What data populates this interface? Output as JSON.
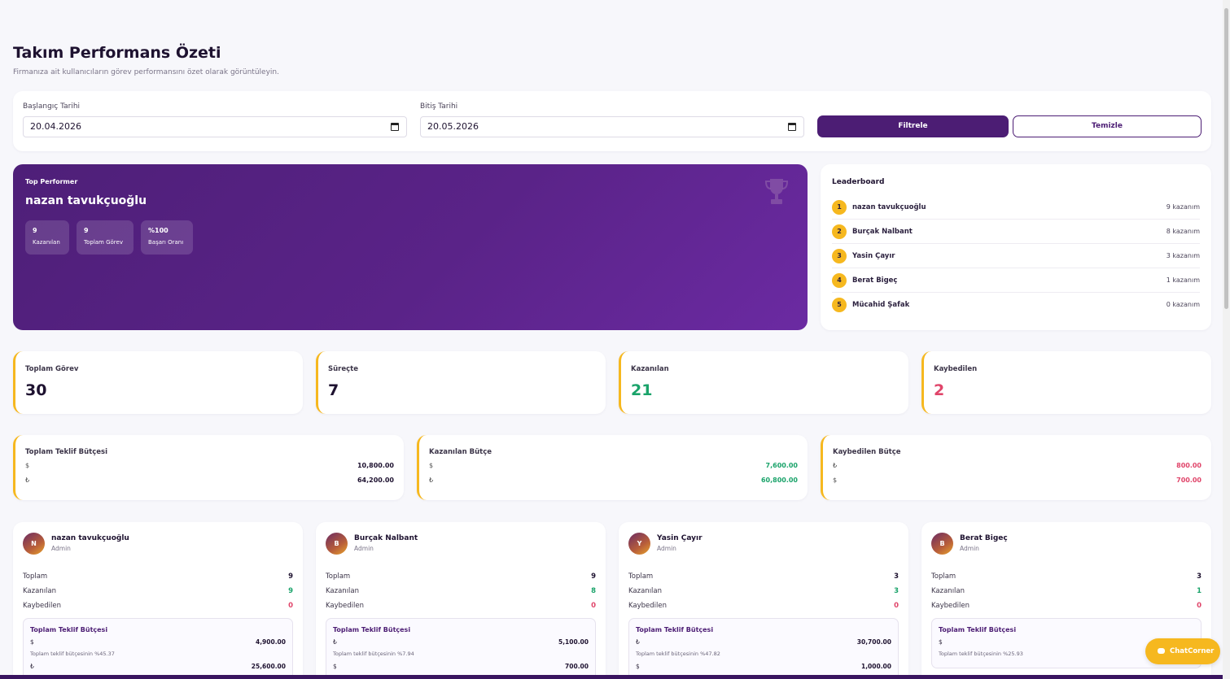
{
  "header": {
    "title": "Takım Performans Özeti",
    "subtitle": "Firmanıza ait kullanıcıların görev performansını özet olarak görüntüleyin."
  },
  "filter": {
    "start_label": "Başlangıç Tarihi",
    "start_value": "20.04.2026",
    "end_label": "Bitiş Tarihi",
    "end_value": "20.05.2026",
    "filter_button": "Filtrele",
    "clear_button": "Temizle"
  },
  "top_performer": {
    "label": "Top Performer",
    "name": "nazan tavukçuoğlu",
    "stats": [
      {
        "value": "9",
        "label": "Kazanılan"
      },
      {
        "value": "9",
        "label": "Toplam Görev"
      },
      {
        "value": "%100",
        "label": "Başarı Oranı"
      }
    ],
    "icon": "trophy-icon"
  },
  "leaderboard": {
    "title": "Leaderboard",
    "rows": [
      {
        "rank": "1",
        "name": "nazan tavukçuoğlu",
        "value": "9 kazanım"
      },
      {
        "rank": "2",
        "name": "Burçak Nalbant",
        "value": "8 kazanım"
      },
      {
        "rank": "3",
        "name": "Yasin Çayır",
        "value": "3 kazanım"
      },
      {
        "rank": "4",
        "name": "Berat Bigeç",
        "value": "1 kazanım"
      },
      {
        "rank": "5",
        "name": "Mücahid Şafak",
        "value": "0 kazanım"
      }
    ]
  },
  "stats": [
    {
      "title": "Toplam Görev",
      "value": "30"
    },
    {
      "title": "Süreçte",
      "value": "7"
    },
    {
      "title": "Kazanılan",
      "value": "21"
    },
    {
      "title": "Kaybedilen",
      "value": "2"
    }
  ],
  "budgets": [
    {
      "title": "Toplam Teklif Bütçesi",
      "rows": [
        {
          "currency": "$",
          "amount": "10,800.00"
        },
        {
          "currency": "₺",
          "amount": "64,200.00"
        }
      ]
    },
    {
      "title": "Kazanılan Bütçe",
      "rows": [
        {
          "currency": "$",
          "amount": "7,600.00"
        },
        {
          "currency": "₺",
          "amount": "60,800.00"
        }
      ]
    },
    {
      "title": "Kaybedilen Bütçe",
      "rows": [
        {
          "currency": "₺",
          "amount": "800.00"
        },
        {
          "currency": "$",
          "amount": "700.00"
        }
      ]
    }
  ],
  "members": [
    {
      "initial": "N",
      "name": "nazan tavukçuoğlu",
      "role": "Admin",
      "total_label": "Toplam",
      "total": "9",
      "won_label": "Kazanılan",
      "won": "9",
      "lost_label": "Kaybedilen",
      "lost": "0",
      "budget_title": "Toplam Teklif Bütçesi",
      "budget_rows": [
        {
          "currency": "$",
          "amount": "4,900.00"
        },
        {
          "currency": "₺",
          "amount": "25,600.00"
        }
      ],
      "note": "Toplam teklif bütçesinin %45.37"
    },
    {
      "initial": "B",
      "name": "Burçak Nalbant",
      "role": "Admin",
      "total_label": "Toplam",
      "total": "9",
      "won_label": "Kazanılan",
      "won": "8",
      "lost_label": "Kaybedilen",
      "lost": "0",
      "budget_title": "Toplam Teklif Bütçesi",
      "budget_rows": [
        {
          "currency": "₺",
          "amount": "5,100.00"
        },
        {
          "currency": "$",
          "amount": "700.00"
        }
      ],
      "note": "Toplam teklif bütçesinin %7.94"
    },
    {
      "initial": "Y",
      "name": "Yasin Çayır",
      "role": "Admin",
      "total_label": "Toplam",
      "total": "3",
      "won_label": "Kazanılan",
      "won": "3",
      "lost_label": "Kaybedilen",
      "lost": "0",
      "budget_title": "Toplam Teklif Bütçesi",
      "budget_rows": [
        {
          "currency": "₺",
          "amount": "30,700.00"
        },
        {
          "currency": "$",
          "amount": "1,000.00"
        }
      ],
      "note": "Toplam teklif bütçesinin %47.82"
    },
    {
      "initial": "B",
      "name": "Berat Bigeç",
      "role": "Admin",
      "total_label": "Toplam",
      "total": "3",
      "won_label": "Kazanılan",
      "won": "1",
      "lost_label": "Kaybedilen",
      "lost": "0",
      "budget_title": "Toplam Teklif Bütçesi",
      "budget_rows": [
        {
          "currency": "$",
          "amount": ""
        }
      ],
      "note": "Toplam teklif bütçesinin %25.93"
    }
  ],
  "chat": {
    "label": "ChatCorner",
    "icon": "chat-bubble-icon"
  },
  "colors": {
    "brand": "#4c1d74",
    "accent": "#f6b81f",
    "success": "#1aa36a",
    "danger": "#e0456a"
  }
}
